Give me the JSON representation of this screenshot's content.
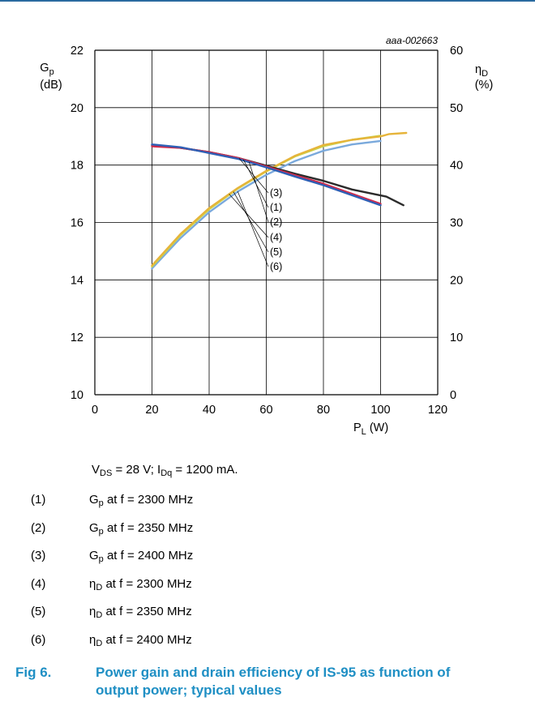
{
  "code": "aaa-002663",
  "chart_data": {
    "type": "line",
    "x_axis": {
      "ticks": [
        "0",
        "20",
        "40",
        "60",
        "80",
        "100",
        "120"
      ],
      "label_main": "P",
      "label_sub": "L",
      "label_unit": "(W)",
      "range": [
        0,
        120
      ]
    },
    "y_left": {
      "ticks": [
        "10",
        "12",
        "14",
        "16",
        "18",
        "20",
        "22"
      ],
      "label_main": "G",
      "label_sub": "p",
      "label_unit": "(dB)",
      "range": [
        10,
        22
      ]
    },
    "y_right": {
      "ticks": [
        "0",
        "10",
        "20",
        "30",
        "40",
        "50",
        "60"
      ],
      "label_main": "η",
      "label_sub": "D",
      "label_unit": "(%)",
      "range": [
        0,
        60
      ]
    },
    "grid": true,
    "series": [
      {
        "id": "1",
        "axis": "left",
        "color": "#d22b4b",
        "x": [
          20,
          30,
          40,
          50,
          60,
          70,
          80,
          90,
          100
        ],
        "y": [
          18.65,
          18.6,
          18.45,
          18.25,
          17.95,
          17.65,
          17.35,
          17.0,
          16.65
        ]
      },
      {
        "id": "2",
        "axis": "left",
        "color": "#2e5fb5",
        "x": [
          20,
          30,
          40,
          50,
          60,
          70,
          80,
          90,
          100
        ],
        "y": [
          18.72,
          18.62,
          18.42,
          18.22,
          17.92,
          17.6,
          17.3,
          16.95,
          16.6
        ]
      },
      {
        "id": "3",
        "axis": "left",
        "color": "#2b2b2b",
        "x": [
          20,
          30,
          40,
          50,
          60,
          70,
          80,
          90,
          102,
          108
        ],
        "y": [
          18.7,
          18.6,
          18.45,
          18.25,
          17.98,
          17.7,
          17.45,
          17.15,
          16.9,
          16.6
        ]
      },
      {
        "id": "4",
        "axis": "right",
        "color": "#e6b43a",
        "x": [
          20,
          30,
          40,
          50,
          60,
          70,
          80,
          90,
          100,
          103,
          109
        ],
        "y": [
          22.5,
          28.0,
          32.5,
          36.0,
          39.0,
          41.6,
          43.5,
          44.4,
          45.0,
          45.4,
          45.6
        ]
      },
      {
        "id": "5",
        "axis": "right",
        "color": "#c8d64a",
        "x": [
          20,
          30,
          40,
          50,
          60,
          70,
          80,
          90,
          100
        ],
        "y": [
          22.3,
          27.8,
          32.3,
          35.9,
          38.9,
          41.5,
          43.3,
          44.4,
          45.1
        ]
      },
      {
        "id": "6",
        "axis": "right",
        "color": "#7aa9dc",
        "x": [
          20,
          30,
          40,
          50,
          60,
          70,
          80,
          90,
          100
        ],
        "y": [
          22.0,
          27.3,
          31.8,
          35.4,
          38.3,
          40.7,
          42.5,
          43.6,
          44.2
        ]
      }
    ],
    "callouts": [
      "(3)",
      "(1)",
      "(2)",
      "(4)",
      "(5)",
      "(6)"
    ]
  },
  "conditions": {
    "v_main": "V",
    "v_sub": "DS",
    "v_rest": " = 28 V; I",
    "i_sub": "Dq",
    "i_rest": " = 1200 mA."
  },
  "legend": [
    {
      "num": "(1)",
      "sym": "G",
      "sub": "p",
      "text": " at f = 2300 MHz"
    },
    {
      "num": "(2)",
      "sym": "G",
      "sub": "p",
      "text": " at f = 2350 MHz"
    },
    {
      "num": "(3)",
      "sym": "G",
      "sub": "p",
      "text": " at f = 2400 MHz"
    },
    {
      "num": "(4)",
      "sym": "η",
      "sub": "D",
      "text": " at f = 2300 MHz"
    },
    {
      "num": "(5)",
      "sym": "η",
      "sub": "D",
      "text": " at f = 2350 MHz"
    },
    {
      "num": "(6)",
      "sym": "η",
      "sub": "D",
      "text": " at f = 2400 MHz"
    }
  ],
  "figure": {
    "number": "Fig 6.",
    "title": "Power gain and drain efficiency of IS-95 as function of output power; typical values"
  }
}
